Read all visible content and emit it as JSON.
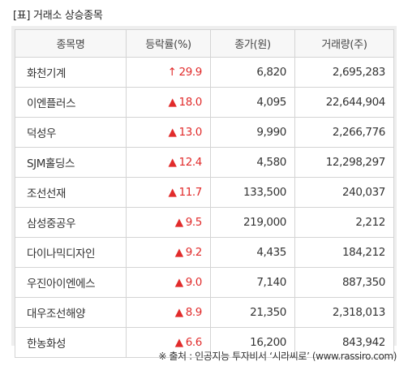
{
  "title": "[표] 거래소 상승종목",
  "columns": [
    "종목명",
    "등락률(%)",
    "종가(원)",
    "거래량(주)"
  ],
  "rows": [
    {
      "name": "화천기계",
      "arrow": "↑",
      "rate": "29.9",
      "price": "6,820",
      "volume": "2,695,283"
    },
    {
      "name": "이엔플러스",
      "arrow": "▲",
      "rate": "18.0",
      "price": "4,095",
      "volume": "22,644,904"
    },
    {
      "name": "덕성우",
      "arrow": "▲",
      "rate": "13.0",
      "price": "9,990",
      "volume": "2,266,776"
    },
    {
      "name": "SJM홀딩스",
      "arrow": "▲",
      "rate": "12.4",
      "price": "4,580",
      "volume": "12,298,297"
    },
    {
      "name": "조선선재",
      "arrow": "▲",
      "rate": "11.7",
      "price": "133,500",
      "volume": "240,037"
    },
    {
      "name": "삼성중공우",
      "arrow": "▲",
      "rate": "9.5",
      "price": "219,000",
      "volume": "2,212"
    },
    {
      "name": "다이나믹디자인",
      "arrow": "▲",
      "rate": "9.2",
      "price": "4,435",
      "volume": "184,212"
    },
    {
      "name": "우진아이엔에스",
      "arrow": "▲",
      "rate": "9.0",
      "price": "7,140",
      "volume": "887,350"
    },
    {
      "name": "대우조선해양",
      "arrow": "▲",
      "rate": "8.9",
      "price": "21,350",
      "volume": "2,318,013"
    },
    {
      "name": "한농화성",
      "arrow": "▲",
      "rate": "6.6",
      "price": "16,200",
      "volume": "843,942"
    }
  ],
  "footer": "※ 출처 : 인공지능 투자비서 ‘시라씨로’ (www.rassiro.com)",
  "colors": {
    "up": "#e12b2b",
    "header_bg": "#f7f7f7",
    "border": "#d4d4d4"
  }
}
